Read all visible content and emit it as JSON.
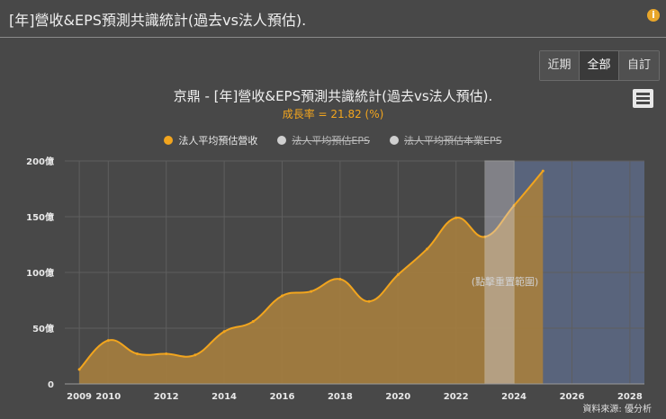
{
  "header": {
    "title": "[年]營收&EPS預測共識統計(過去vs法人預估).",
    "info_icon": "info-icon"
  },
  "range_buttons": [
    "近期",
    "全部",
    "自訂"
  ],
  "range_selected": "全部",
  "menu_icon": "menu-icon",
  "source_note": "資料來源: 優分析",
  "colors": {
    "background": "#484848",
    "accent": "#f2a51e",
    "forecast_band": "#5d6a86",
    "hidden_series": "#cfcfcf"
  },
  "chart_data": {
    "type": "area",
    "title": "京鼎 - [年]營收&EPS預測共識統計(過去vs法人預估).",
    "subtitle": "成長率 = 21.82 (%)",
    "legend": [
      {
        "name": "法人平均預估營收",
        "visible": true
      },
      {
        "name": "法人平均預估EPS",
        "visible": false
      },
      {
        "name": "法人平均預估本業EPS",
        "visible": false
      }
    ],
    "legend_placement": "top-center",
    "x_ticks": [
      "2009",
      "2010",
      "2012",
      "2014",
      "2016",
      "2018",
      "2020",
      "2022",
      "2024",
      "2026",
      "2028"
    ],
    "x_tick_values": [
      2009,
      2010,
      2012,
      2014,
      2016,
      2018,
      2020,
      2022,
      2024,
      2026,
      2028
    ],
    "xlim": [
      2008.5,
      2028.5
    ],
    "y_ticks": [
      "0",
      "50億",
      "100億",
      "150億",
      "200億"
    ],
    "y_tick_values": [
      0,
      50,
      100,
      150,
      200
    ],
    "ylim": [
      0,
      200
    ],
    "y_unit": "億",
    "grid": true,
    "series": [
      {
        "name": "法人平均預估營收",
        "x": [
          2009,
          2010,
          2011,
          2012,
          2013,
          2014,
          2015,
          2016,
          2017,
          2018,
          2019,
          2020,
          2021,
          2022,
          2023,
          2024,
          2025
        ],
        "values": [
          13,
          39,
          27,
          27,
          26,
          47,
          56,
          79,
          83,
          94,
          74,
          98,
          121,
          149,
          132,
          160,
          191
        ]
      }
    ],
    "zoom_band": {
      "from": 2023,
      "to": 2024,
      "label": "(點擊重置範圍)"
    },
    "forecast_band": {
      "from": 2024,
      "to": 2028.5
    }
  }
}
